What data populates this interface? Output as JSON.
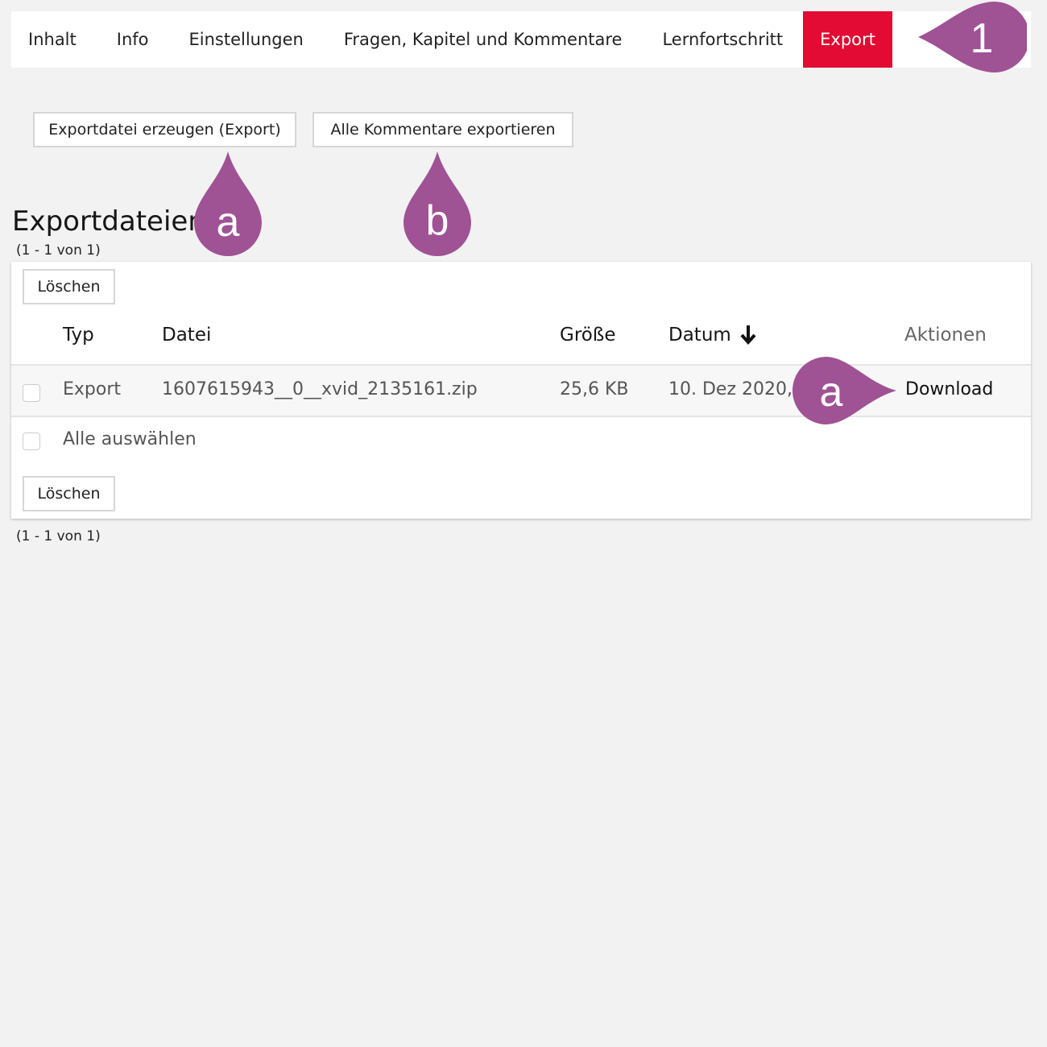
{
  "tabs": [
    {
      "label": "Inhalt",
      "active": false
    },
    {
      "label": "Info",
      "active": false
    },
    {
      "label": "Einstellungen",
      "active": false
    },
    {
      "label": "Fragen, Kapitel und Kommentare",
      "active": false
    },
    {
      "label": "Lernfortschritt",
      "active": false
    },
    {
      "label": "Export",
      "active": true
    }
  ],
  "toolbar": {
    "create_export": "Exportdatei erzeugen (Export)",
    "export_comments": "Alle Kommentare exportieren"
  },
  "section": {
    "title": "Exportdateien",
    "count_top": "(1 - 1 von 1)",
    "count_bottom": "(1 - 1 von 1)"
  },
  "table": {
    "delete_label": "Löschen",
    "headers": {
      "type": "Typ",
      "file": "Datei",
      "size": "Größe",
      "date": "Datum",
      "actions": "Aktionen"
    },
    "sort": {
      "column": "Datum",
      "direction": "descending",
      "icon": "arrow-down-icon"
    },
    "rows": [
      {
        "type": "Export",
        "file": "1607615943__0__xvid_2135161.zip",
        "size": "25,6 KB",
        "date": "10. Dez 2020, 1",
        "action": "Download",
        "selected": false
      }
    ],
    "select_all": "Alle auswählen"
  },
  "annotations": {
    "color": "#9f5294",
    "tab_marker": "1",
    "create_marker": "a",
    "comments_marker": "b",
    "download_marker": "a"
  },
  "colors": {
    "active_tab": "#e30b33",
    "background": "#f2f2f2"
  }
}
